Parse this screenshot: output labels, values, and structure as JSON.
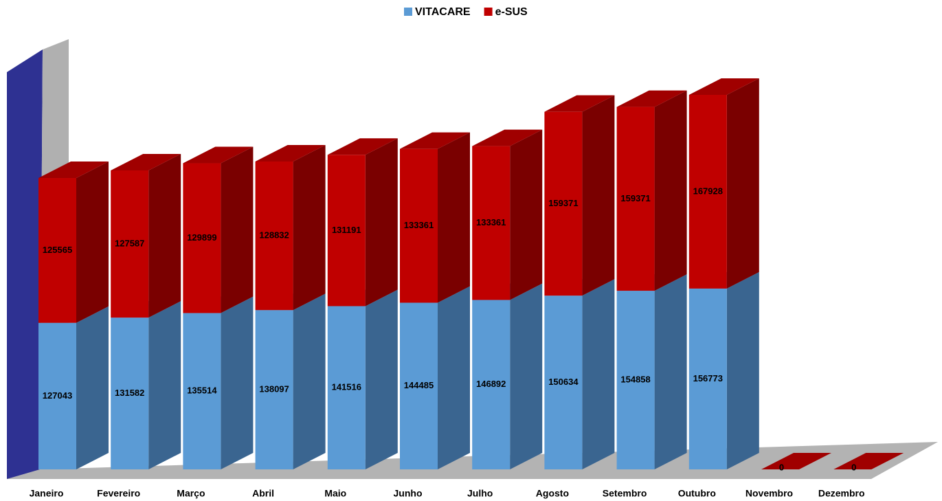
{
  "chart_data": {
    "type": "bar3d_stacked",
    "categories": [
      "Janeiro",
      "Fevereiro",
      "Março",
      "Abril",
      "Maio",
      "Junho",
      "Julho",
      "Agosto",
      "Setembro",
      "Outubro",
      "Novembro",
      "Dezembro"
    ],
    "series": [
      {
        "name": "VITACARE",
        "color": "#5b9bd5",
        "side_color": "#3a6590",
        "values": [
          127043,
          131582,
          135514,
          138097,
          141516,
          144485,
          146892,
          150634,
          154858,
          156773,
          null,
          null
        ]
      },
      {
        "name": "e-SUS",
        "color": "#c00000",
        "side_color": "#7a0000",
        "values": [
          125565,
          127587,
          129899,
          128832,
          131191,
          133361,
          133361,
          159371,
          159371,
          167928,
          0,
          0
        ]
      }
    ],
    "legend": "top"
  }
}
